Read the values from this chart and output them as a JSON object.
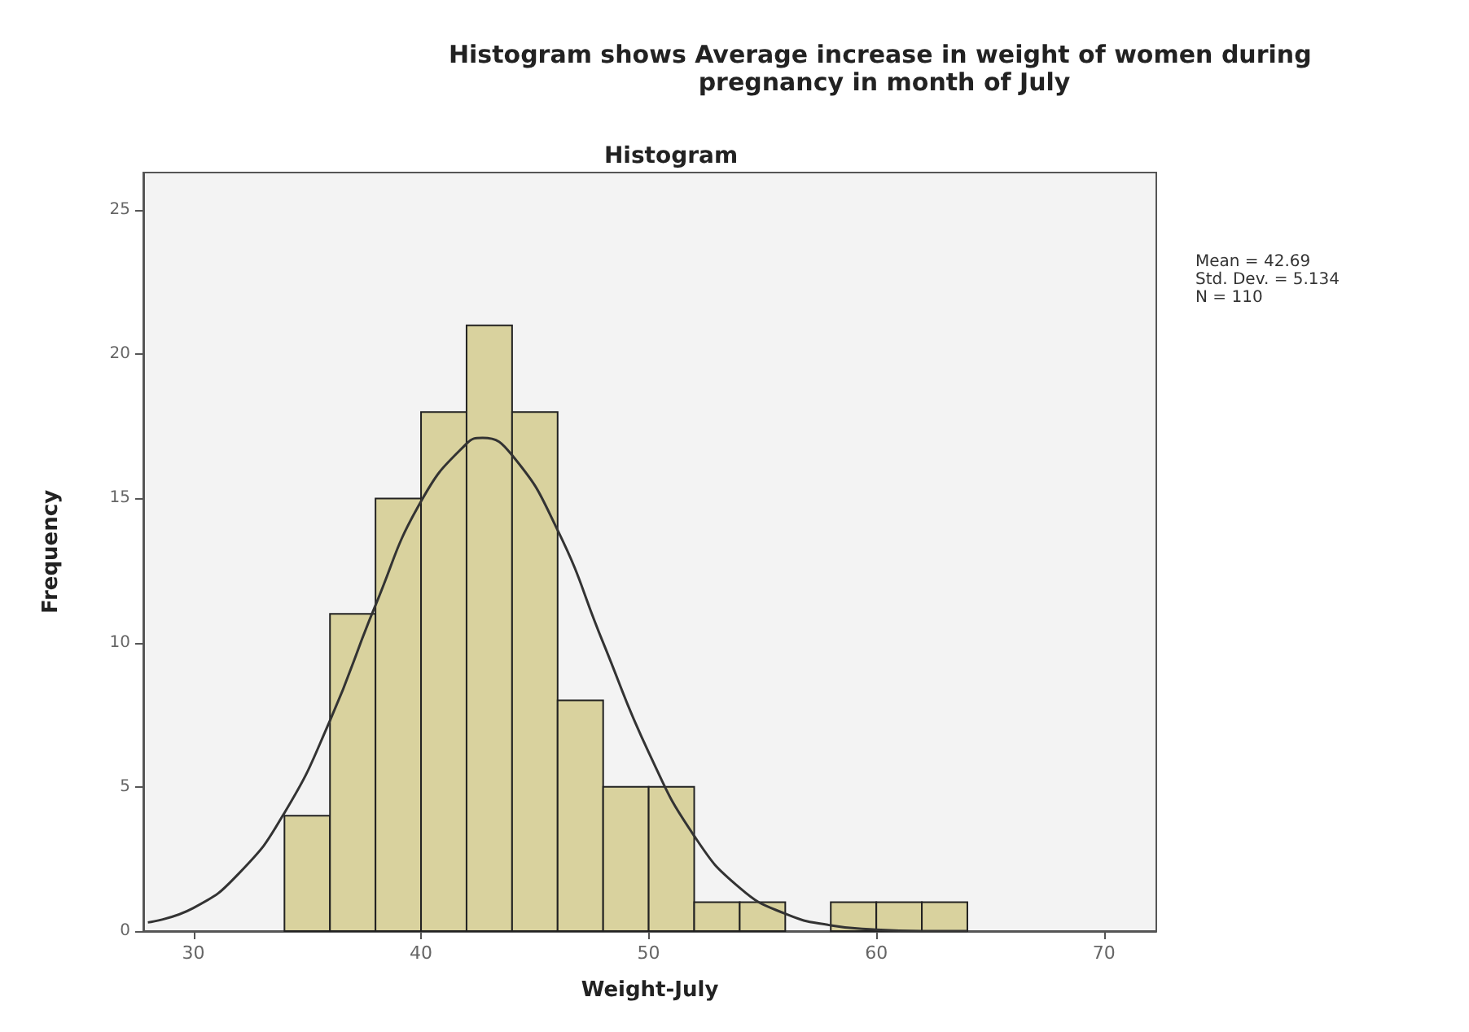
{
  "chart_data": {
    "type": "histogram",
    "title": "Histogram shows Average increase in weight of women during pregnancy in month of July",
    "subtitle": "Histogram",
    "xlabel": "Weight-July",
    "ylabel": "Frequency",
    "series": [
      {
        "color": "#d9d29e",
        "bins": [
          34,
          36,
          38,
          40,
          42,
          44,
          46,
          48,
          50,
          52,
          54,
          56,
          58,
          60,
          62,
          64
        ],
        "values": [
          4,
          11,
          15,
          18,
          21,
          18,
          8,
          5,
          5,
          1,
          1,
          0,
          1,
          1,
          1
        ]
      },
      {
        "type": "line",
        "color": "#333333",
        "x": [
          28,
          30,
          32,
          34,
          36,
          38,
          40,
          42,
          42.7,
          44,
          46,
          48,
          50,
          52,
          54,
          56,
          58,
          60,
          62,
          64
        ],
        "values": [
          0.3,
          0.8,
          2,
          4.1,
          7.3,
          11.3,
          14.9,
          16.9,
          17.1,
          16.5,
          13.9,
          10,
          6.2,
          3.3,
          1.5,
          0.6,
          0.2,
          0.05,
          0,
          0
        ]
      }
    ],
    "xlim": [
      27.8,
      72.3
    ],
    "xticks": [
      30,
      40,
      50,
      60,
      70
    ],
    "ylim": [
      0,
      26.3
    ],
    "yticks": [
      0,
      5,
      10,
      15,
      20,
      25
    ],
    "grid": false,
    "marker": "none",
    "line_style": "solid",
    "annotations": [
      "Mean = 42.69",
      "Std. Dev. = 5.134",
      "N = 110"
    ]
  }
}
